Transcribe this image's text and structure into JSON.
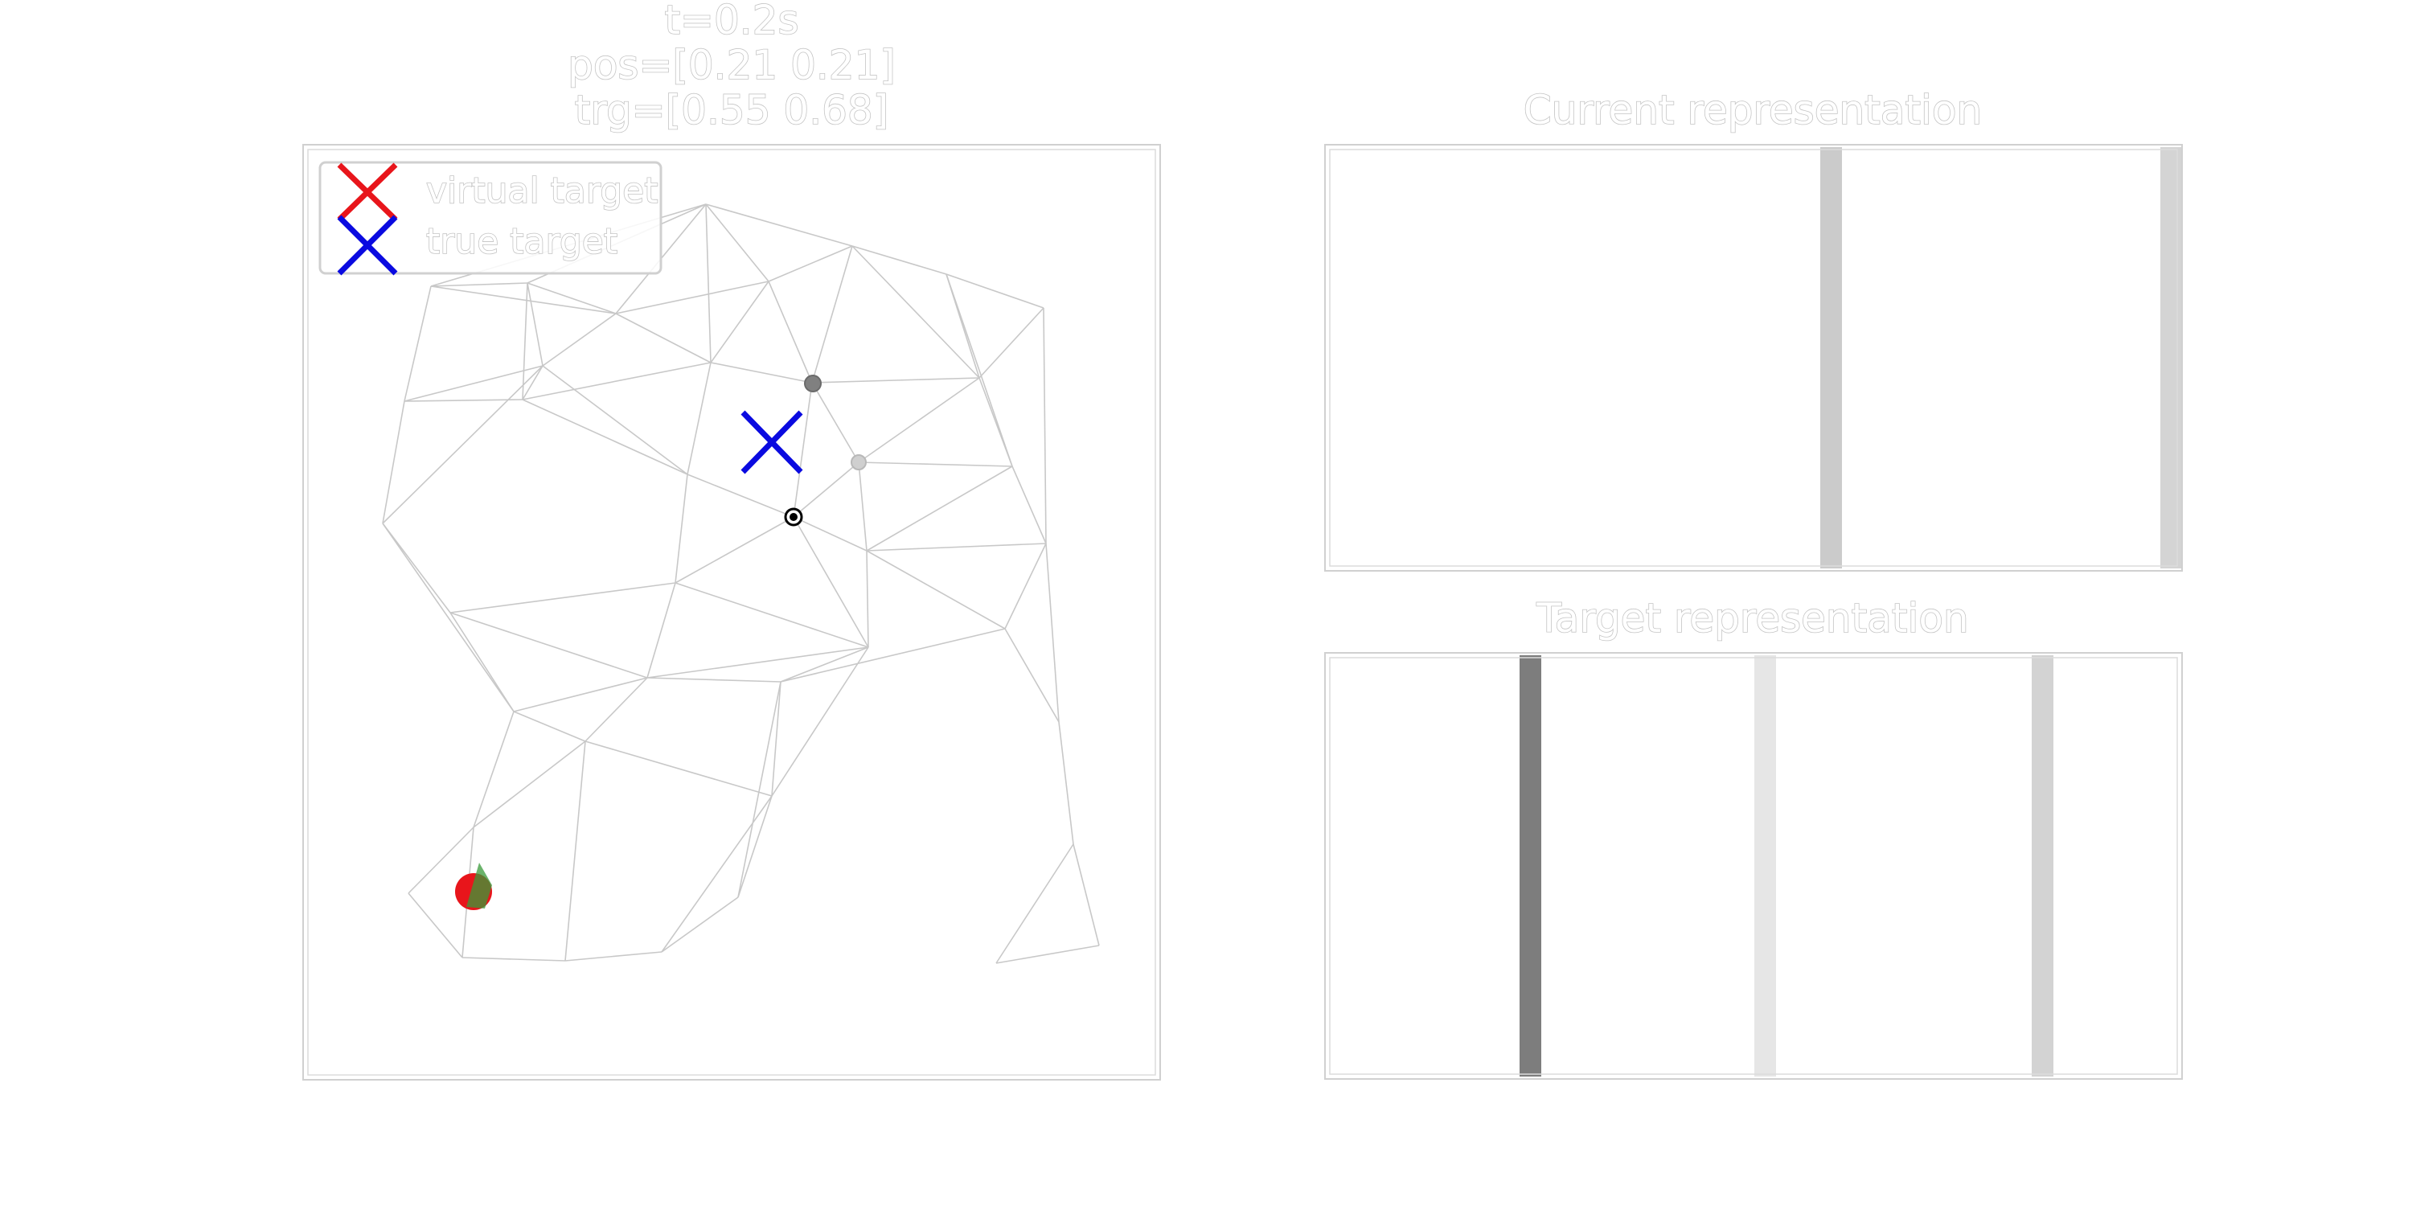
{
  "left_panel": {
    "title_lines": [
      "t=0.2s",
      "pos=[0.21 0.21]",
      "trg=[0.55 0.68]"
    ],
    "legend": [
      {
        "label": "virtual target",
        "color": "#e8151b",
        "marker": "x-icon"
      },
      {
        "label": "true target",
        "color": "#0a0ae0",
        "marker": "x-icon"
      }
    ],
    "agent": {
      "color": "#e8151b",
      "heading_color": "#3a9a3a"
    },
    "true_target_color": "#0a0ae0"
  },
  "current_panel": {
    "title": "Current representation",
    "bars": [
      {
        "shade": "#cbcbcb"
      },
      {
        "shade": "#d4d4d4"
      }
    ]
  },
  "target_panel": {
    "title": "Target representation",
    "bars": [
      {
        "shade": "#7d7d7d"
      },
      {
        "shade": "#e6e6e6"
      },
      {
        "shade": "#d3d3d3"
      }
    ]
  }
}
